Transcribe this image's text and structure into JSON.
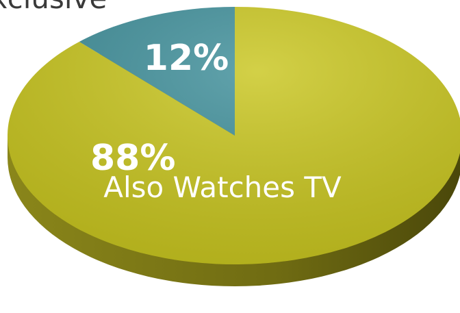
{
  "chart_data": {
    "type": "pie",
    "categories": [
      "Exclusive",
      "Also Watches TV"
    ],
    "values": [
      12,
      88
    ],
    "value_labels": [
      "12%",
      "88%"
    ],
    "colors": [
      "#3f8f9a",
      "#c9c61f"
    ]
  }
}
